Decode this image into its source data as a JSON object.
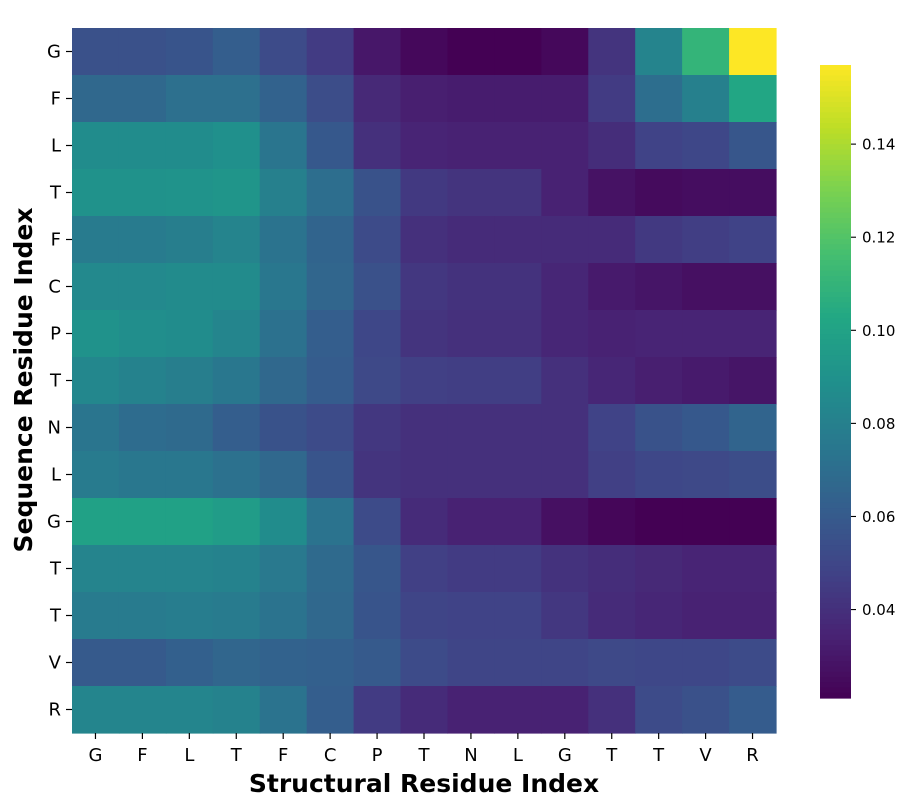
{
  "chart_data": {
    "type": "heatmap",
    "title": "",
    "xlabel": "Structural Residue Index",
    "ylabel": "Sequence Residue Index",
    "x_categories": [
      "G",
      "F",
      "L",
      "T",
      "F",
      "C",
      "P",
      "T",
      "N",
      "L",
      "G",
      "T",
      "T",
      "V",
      "R"
    ],
    "y_categories": [
      "G",
      "F",
      "L",
      "T",
      "F",
      "C",
      "P",
      "T",
      "N",
      "L",
      "G",
      "T",
      "T",
      "V",
      "R"
    ],
    "values": [
      [
        0.055,
        0.055,
        0.057,
        0.062,
        0.052,
        0.045,
        0.03,
        0.024,
        0.021,
        0.021,
        0.024,
        0.042,
        0.082,
        0.11,
        0.157
      ],
      [
        0.067,
        0.067,
        0.071,
        0.071,
        0.064,
        0.053,
        0.037,
        0.033,
        0.032,
        0.032,
        0.032,
        0.045,
        0.07,
        0.08,
        0.102
      ],
      [
        0.087,
        0.087,
        0.087,
        0.089,
        0.074,
        0.059,
        0.04,
        0.035,
        0.034,
        0.034,
        0.034,
        0.039,
        0.048,
        0.05,
        0.058
      ],
      [
        0.09,
        0.09,
        0.091,
        0.092,
        0.08,
        0.07,
        0.056,
        0.044,
        0.042,
        0.042,
        0.034,
        0.028,
        0.025,
        0.026,
        0.026
      ],
      [
        0.077,
        0.077,
        0.079,
        0.082,
        0.073,
        0.065,
        0.052,
        0.04,
        0.038,
        0.038,
        0.038,
        0.038,
        0.044,
        0.046,
        0.048
      ],
      [
        0.085,
        0.085,
        0.086,
        0.086,
        0.075,
        0.066,
        0.055,
        0.043,
        0.041,
        0.041,
        0.036,
        0.031,
        0.029,
        0.027,
        0.027
      ],
      [
        0.09,
        0.088,
        0.087,
        0.083,
        0.072,
        0.062,
        0.05,
        0.042,
        0.04,
        0.04,
        0.036,
        0.034,
        0.035,
        0.035,
        0.035
      ],
      [
        0.084,
        0.081,
        0.079,
        0.075,
        0.067,
        0.061,
        0.051,
        0.047,
        0.046,
        0.046,
        0.04,
        0.036,
        0.033,
        0.031,
        0.029
      ],
      [
        0.074,
        0.069,
        0.068,
        0.062,
        0.056,
        0.052,
        0.043,
        0.04,
        0.04,
        0.04,
        0.04,
        0.048,
        0.056,
        0.059,
        0.065
      ],
      [
        0.077,
        0.075,
        0.075,
        0.072,
        0.067,
        0.057,
        0.042,
        0.04,
        0.04,
        0.04,
        0.04,
        0.047,
        0.05,
        0.051,
        0.053
      ],
      [
        0.099,
        0.099,
        0.099,
        0.096,
        0.087,
        0.073,
        0.052,
        0.038,
        0.034,
        0.034,
        0.027,
        0.023,
        0.021,
        0.021,
        0.02
      ],
      [
        0.082,
        0.082,
        0.082,
        0.081,
        0.076,
        0.068,
        0.058,
        0.047,
        0.045,
        0.045,
        0.041,
        0.039,
        0.037,
        0.035,
        0.035
      ],
      [
        0.077,
        0.077,
        0.078,
        0.077,
        0.073,
        0.067,
        0.057,
        0.049,
        0.048,
        0.048,
        0.043,
        0.038,
        0.036,
        0.034,
        0.034
      ],
      [
        0.06,
        0.06,
        0.063,
        0.066,
        0.064,
        0.063,
        0.06,
        0.052,
        0.049,
        0.049,
        0.049,
        0.051,
        0.05,
        0.05,
        0.052
      ],
      [
        0.083,
        0.083,
        0.083,
        0.081,
        0.073,
        0.062,
        0.045,
        0.038,
        0.034,
        0.034,
        0.034,
        0.04,
        0.052,
        0.055,
        0.061
      ]
    ],
    "colormap": "viridis",
    "colorbar": {
      "range": [
        0.021,
        0.157
      ],
      "ticks": [
        0.04,
        0.06,
        0.08,
        0.1,
        0.12,
        0.14
      ],
      "tick_labels": [
        "0.04",
        "0.06",
        "0.08",
        "0.10",
        "0.12",
        "0.14"
      ]
    },
    "grid": false,
    "legend": "none"
  }
}
